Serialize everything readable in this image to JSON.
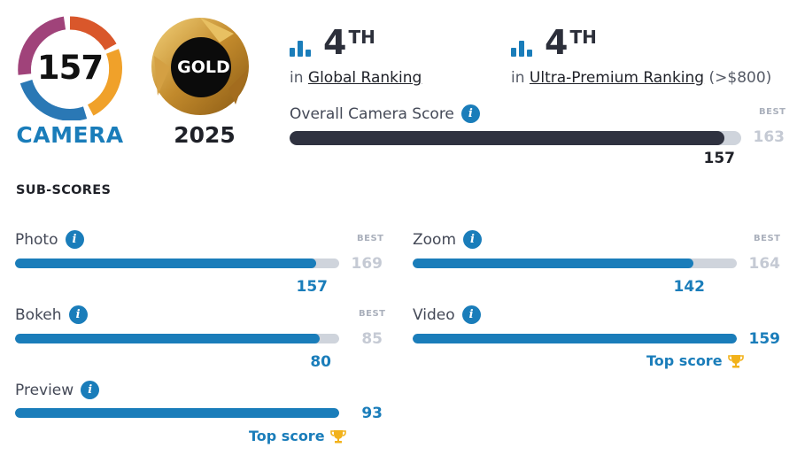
{
  "camera_badge": {
    "score": "157",
    "label": "CAMERA"
  },
  "gold_badge": {
    "label": "GOLD",
    "year": "2025"
  },
  "rankings": [
    {
      "rank": "4",
      "suffix": "TH",
      "prefix": "in",
      "link": "Global Ranking",
      "extra": ""
    },
    {
      "rank": "4",
      "suffix": "TH",
      "prefix": "in",
      "link": "Ultra-Premium Ranking",
      "extra": "(>$800)"
    }
  ],
  "overall": {
    "label": "Overall Camera Score",
    "best_label": "BEST",
    "best": "163",
    "value": "157",
    "fill_fraction": 0.963
  },
  "subscores_title": "SUB-SCORES",
  "subscores": {
    "photo": {
      "label": "Photo",
      "best_label": "BEST",
      "best": "169",
      "value": "157",
      "fill_fraction": 0.929,
      "top": ""
    },
    "zoom": {
      "label": "Zoom",
      "best_label": "BEST",
      "best": "164",
      "value": "142",
      "fill_fraction": 0.866,
      "top": ""
    },
    "bokeh": {
      "label": "Bokeh",
      "best_label": "BEST",
      "best": "85",
      "value": "80",
      "fill_fraction": 0.941,
      "top": ""
    },
    "video": {
      "label": "Video",
      "best_label": "",
      "best": "",
      "value": "159",
      "fill_fraction": 1.0,
      "top": "Top score"
    },
    "preview": {
      "label": "Preview",
      "best_label": "",
      "best": "",
      "value": "93",
      "fill_fraction": 1.0,
      "top": "Top score"
    }
  },
  "colors": {
    "accent": "#1a7dba",
    "dark_bar": "#2f3240",
    "track": "#cfd4dc",
    "gold": "#c28a2c"
  },
  "icons": {
    "info": "info-icon",
    "rank": "bar-chart-icon",
    "trophy": "trophy-icon"
  }
}
